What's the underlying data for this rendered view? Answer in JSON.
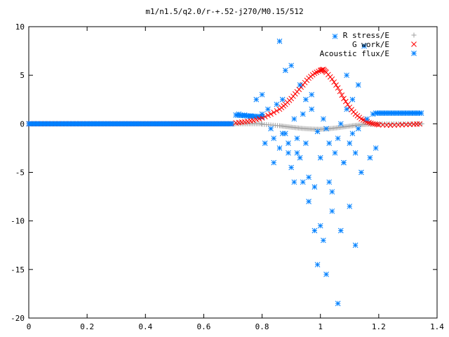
{
  "chart_data": {
    "type": "scatter",
    "title": "m1/n1.5/q2.0/r-+.52-j270/M0.15/512",
    "xlabel": "",
    "ylabel": "",
    "xlim": [
      0,
      1.4
    ],
    "ylim": [
      -20,
      10
    ],
    "xticks": [
      "0",
      "0.2",
      "0.4",
      "0.6",
      "0.8",
      "1",
      "1.2",
      "1.4"
    ],
    "yticks": [
      "10",
      "5",
      "0",
      "-5",
      "-10",
      "-15",
      "-20"
    ],
    "grid": false,
    "legend_position": "top-right",
    "series": [
      {
        "name": "R stress/E",
        "marker": "plus",
        "color": "#a0a0a0",
        "note_shape": "baseline 0 up to x=0.8, then a shallow negative bump around x=1.0, returning to 0",
        "x": [
          0.8,
          0.83,
          0.86,
          0.88,
          0.9,
          0.92,
          0.94,
          0.96,
          0.98,
          1.0,
          1.02,
          1.04,
          1.06,
          1.08,
          1.1,
          1.12,
          1.14,
          1.16,
          1.18
        ],
        "y": [
          -0.05,
          -0.12,
          -0.2,
          -0.28,
          -0.35,
          -0.42,
          -0.48,
          -0.52,
          -0.55,
          -0.56,
          -0.53,
          -0.47,
          -0.4,
          -0.32,
          -0.24,
          -0.16,
          -0.1,
          -0.05,
          -0.02
        ]
      },
      {
        "name": "G work/E",
        "marker": "cross",
        "color": "#ff0000",
        "x": [
          0.71,
          0.74,
          0.77,
          0.8,
          0.83,
          0.86,
          0.88,
          0.9,
          0.92,
          0.94,
          0.96,
          0.98,
          1.0,
          1.01,
          1.02,
          1.04,
          1.06,
          1.08,
          1.1,
          1.12,
          1.14,
          1.16,
          1.18,
          1.2,
          1.24,
          1.28,
          1.32,
          1.35
        ],
        "y": [
          0.1,
          0.2,
          0.35,
          0.6,
          1.0,
          1.5,
          2.0,
          2.6,
          3.3,
          4.0,
          4.7,
          5.2,
          5.5,
          5.6,
          5.3,
          4.6,
          3.7,
          2.6,
          1.7,
          1.0,
          0.5,
          0.2,
          0.0,
          -0.1,
          -0.15,
          -0.1,
          -0.05,
          0.0
        ]
      },
      {
        "name": "Acoustic flux/E",
        "marker": "star",
        "color": "#0080ff",
        "note_shape": "0 for x<0.71; about 1 for x>1.2; scattered in between",
        "x": [
          0.72,
          0.74,
          0.76,
          0.78,
          0.8,
          0.81,
          0.82,
          0.84,
          0.85,
          0.86,
          0.87,
          0.88,
          0.89,
          0.9,
          0.91,
          0.92,
          0.93,
          0.94,
          0.95,
          0.96,
          0.97,
          0.98,
          0.99,
          1.0,
          1.01,
          1.02,
          1.03,
          1.04,
          1.05,
          1.06,
          1.07,
          1.08,
          1.09,
          1.1,
          1.11,
          1.12,
          1.13,
          1.14,
          1.15,
          1.16,
          1.17,
          1.18,
          1.19,
          0.83,
          0.86,
          0.88,
          0.9,
          0.92,
          0.94,
          0.96,
          0.98,
          1.0,
          1.02,
          1.04,
          1.06,
          1.08,
          1.1,
          1.12,
          0.8,
          0.84,
          0.87,
          0.89,
          0.91,
          0.93,
          0.95,
          0.97,
          0.99,
          1.01,
          1.03,
          1.05,
          1.07,
          1.09,
          1.11,
          1.13
        ],
        "y": [
          1.0,
          0.9,
          0.8,
          2.5,
          3.0,
          -2.0,
          1.5,
          -4.0,
          2.0,
          8.5,
          -1.0,
          5.5,
          -3.0,
          6.0,
          -6.0,
          -1.5,
          4.0,
          -6.0,
          -2.0,
          -8.0,
          3.0,
          -11.0,
          -14.5,
          -10.5,
          -12.0,
          -15.5,
          -6.0,
          -9.0,
          9.0,
          -18.5,
          -11.0,
          -4.0,
          5.0,
          -8.5,
          2.5,
          -12.5,
          4.0,
          -5.0,
          8.0,
          0.5,
          -3.5,
          1.0,
          -2.5,
          -0.5,
          -2.5,
          -1.0,
          -4.5,
          -3.0,
          1.0,
          -5.5,
          -6.5,
          -3.5,
          -0.5,
          -7.0,
          -1.5,
          -4.0,
          -2.0,
          -3.0,
          1.0,
          -1.5,
          2.5,
          -2.0,
          0.5,
          -3.5,
          2.5,
          1.5,
          -0.8,
          0.5,
          -2.0,
          -3.0,
          0.0,
          1.5,
          -1.0,
          -0.5
        ]
      }
    ]
  }
}
